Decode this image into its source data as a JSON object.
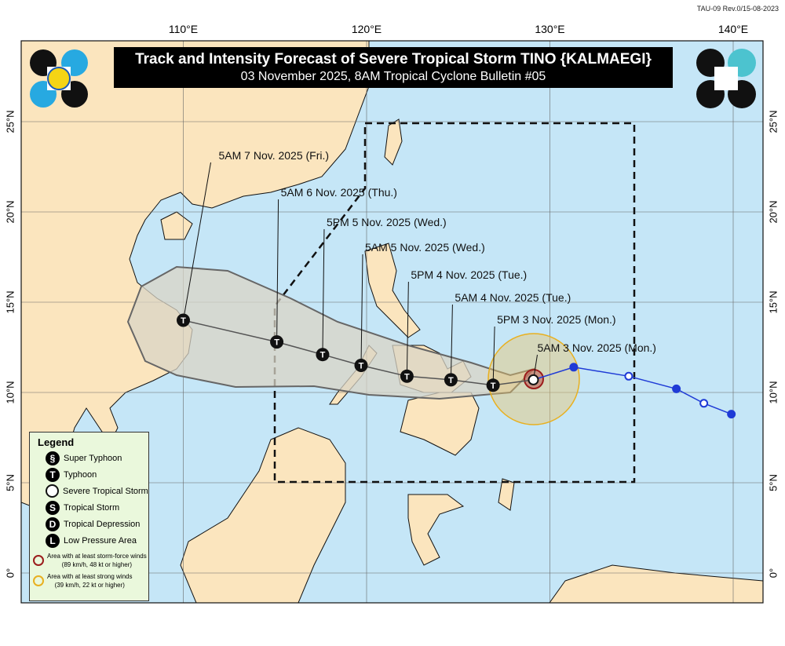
{
  "header": {
    "revision": "TAU-09 Rev.0/15-08-2023",
    "title": "Track and Intensity Forecast of Severe Tropical Storm TINO {KALMAEGI}",
    "subtitle": "03 November 2025, 8AM Tropical Cyclone Bulletin #05"
  },
  "axes": {
    "lon_labels": [
      "110°E",
      "120°E",
      "130°E",
      "140°E"
    ],
    "lat_labels": [
      "25°N",
      "20°N",
      "15°N",
      "10°N",
      "5°N",
      "0°"
    ]
  },
  "forecast_points": [
    {
      "label": "5AM 3 Nov. 2025 (Mon.)",
      "lon": 129.1,
      "lat": 10.7,
      "category": "Severe Tropical Storm"
    },
    {
      "label": "5PM 3 Nov. 2025 (Mon.)",
      "lon": 126.9,
      "lat": 10.4,
      "category": "Typhoon"
    },
    {
      "label": "5AM 4 Nov. 2025 (Tue.)",
      "lon": 124.6,
      "lat": 10.7,
      "category": "Typhoon"
    },
    {
      "label": "5PM 4 Nov. 2025 (Tue.)",
      "lon": 122.2,
      "lat": 10.9,
      "category": "Typhoon"
    },
    {
      "label": "5AM 5 Nov. 2025 (Wed.)",
      "lon": 119.7,
      "lat": 11.5,
      "category": "Typhoon"
    },
    {
      "label": "5PM 5 Nov. 2025 (Wed.)",
      "lon": 117.6,
      "lat": 12.1,
      "category": "Typhoon"
    },
    {
      "label": "5AM 6 Nov. 2025 (Thu.)",
      "lon": 115.1,
      "lat": 12.8,
      "category": "Typhoon"
    },
    {
      "label": "5AM 7 Nov. 2025 (Fri.)",
      "lon": 110.0,
      "lat": 14.0,
      "category": "Typhoon"
    }
  ],
  "past_track": [
    [
      131.3,
      11.4
    ],
    [
      134.3,
      10.9
    ],
    [
      136.9,
      10.2
    ],
    [
      138.4,
      9.4
    ],
    [
      139.9,
      8.8
    ]
  ],
  "legend": {
    "title": "Legend",
    "items": [
      {
        "label": "Super Typhoon",
        "icon": "super-typhoon-icon",
        "glyph": "§"
      },
      {
        "label": "Typhoon",
        "icon": "typhoon-icon",
        "glyph": "T"
      },
      {
        "label": "Severe Tropical Storm",
        "icon": "severe-tropical-storm-icon",
        "glyph": ""
      },
      {
        "label": "Tropical Storm",
        "icon": "tropical-storm-icon",
        "glyph": "S"
      },
      {
        "label": "Tropical Depression",
        "icon": "tropical-depression-icon",
        "glyph": "D"
      },
      {
        "label": "Low Pressure Area",
        "icon": "low-pressure-area-icon",
        "glyph": "L"
      }
    ],
    "areas": [
      {
        "label": "Area with at least storm-force winds",
        "detail": "(89 km/h, 48 kt or higher)",
        "color": "#9b1c1c"
      },
      {
        "label": "Area with at least strong winds",
        "detail": "(39 km/h, 22 kt or higher)",
        "color": "#e8b020"
      }
    ]
  },
  "colors": {
    "sea": "#c5e6f7",
    "land": "#fbe5be",
    "cone": "#d9d4c6",
    "past_track": "#1f3bd6"
  }
}
